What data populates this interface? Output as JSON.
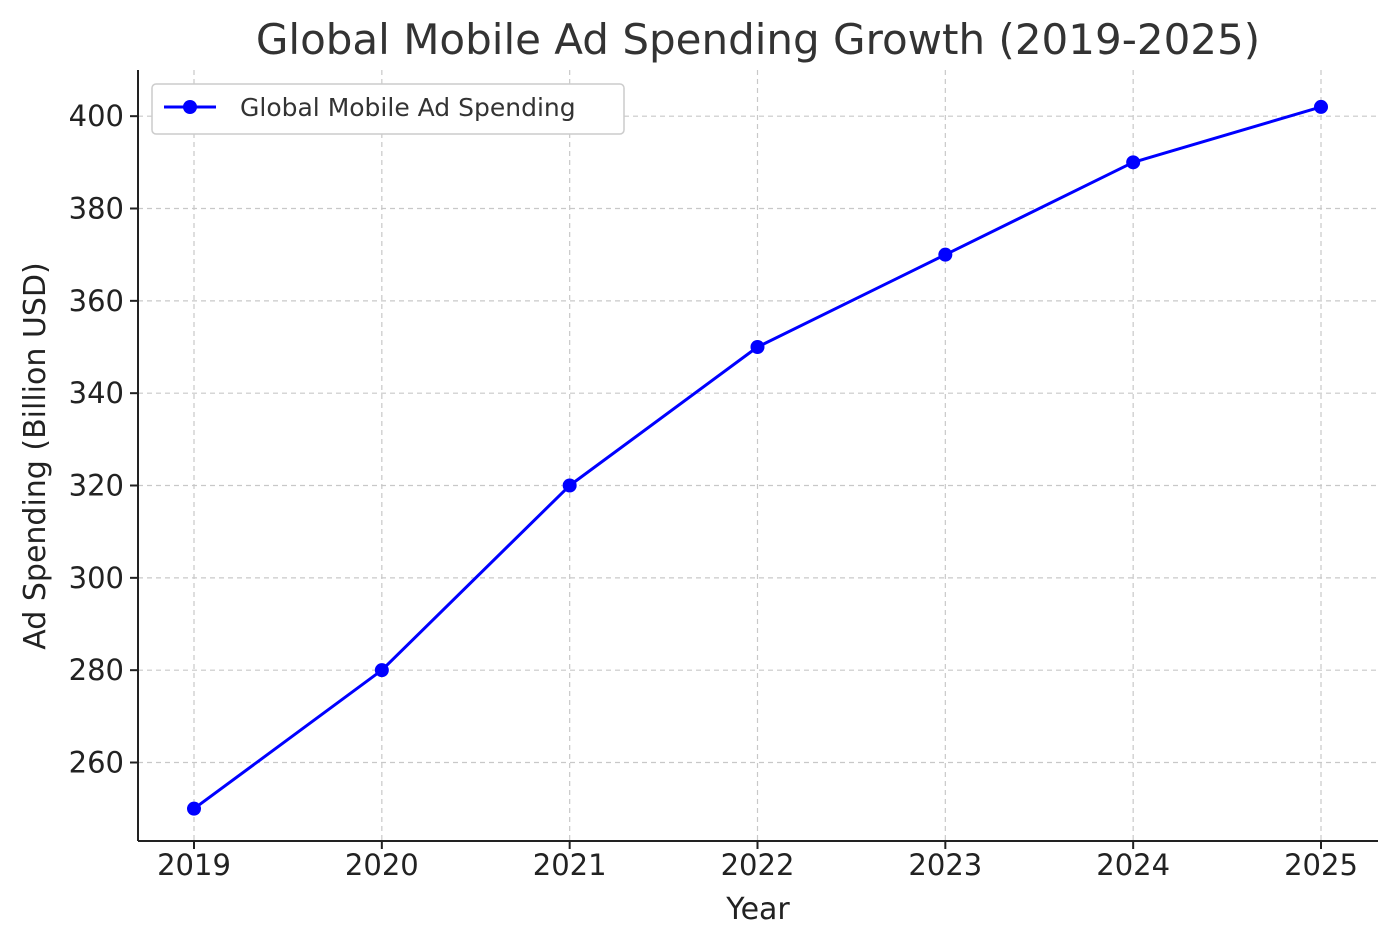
{
  "chart_data": {
    "type": "line",
    "title": "Global Mobile Ad Spending Growth (2019-2025)",
    "xlabel": "Year",
    "ylabel": "Ad Spending (Billion USD)",
    "x": [
      "2019",
      "2020",
      "2021",
      "2022",
      "2023",
      "2024",
      "2025"
    ],
    "yticks": [
      260,
      280,
      300,
      320,
      340,
      360,
      380,
      400
    ],
    "ylim": [
      243,
      410
    ],
    "grid": true,
    "legend_position": "top-left",
    "series": [
      {
        "name": "Global Mobile Ad Spending",
        "color": "#0000ff",
        "marker": "circle",
        "values": [
          250,
          280,
          320,
          350,
          370,
          390,
          402
        ]
      }
    ]
  }
}
